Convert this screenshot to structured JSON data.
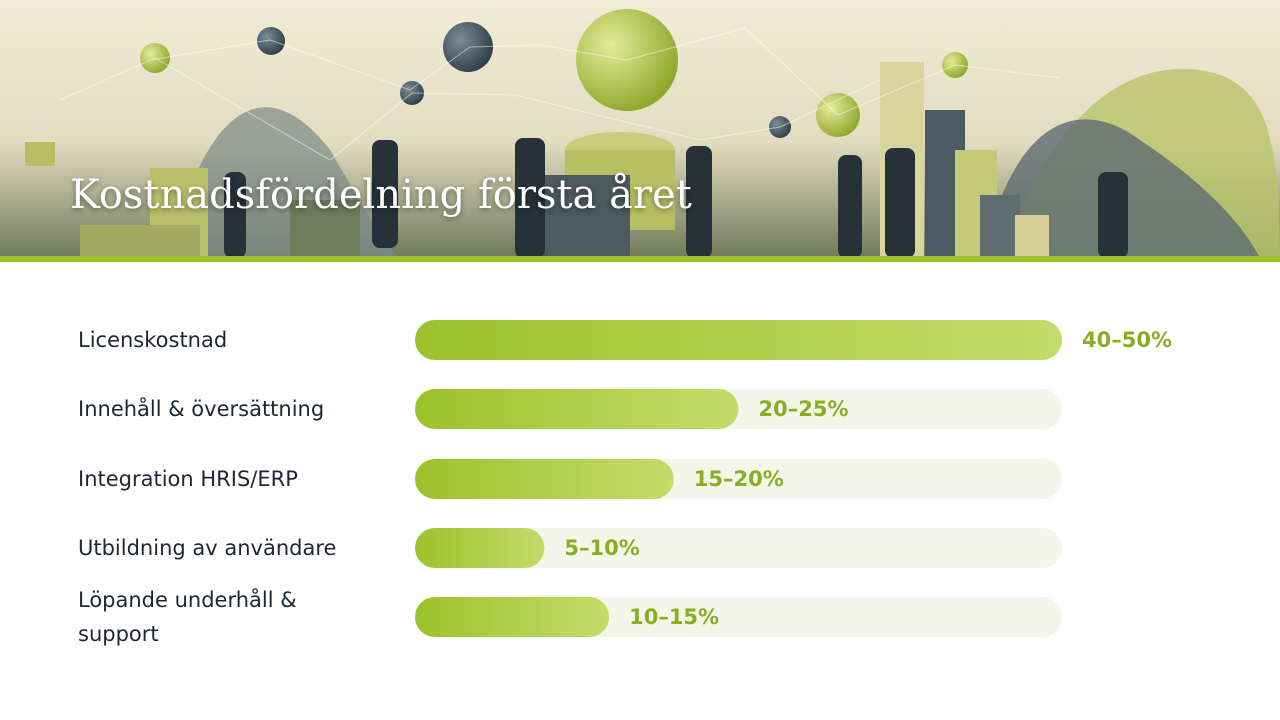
{
  "chart_data": {
    "type": "bar",
    "orientation": "horizontal",
    "title": "Kostnadsfördelning första året",
    "categories": [
      "Licenskostnad",
      "Innehåll & översättning",
      "Integration HRIS/ERP",
      "Utbildning av användare",
      "Löpande underhåll & support"
    ],
    "values": [
      50,
      25,
      20,
      10,
      15
    ],
    "value_labels": [
      "40–50%",
      "20–25%",
      "15–20%",
      "5–10%",
      "10–15%"
    ],
    "color": "#9cc22a",
    "xlim": [
      0,
      50
    ]
  }
}
